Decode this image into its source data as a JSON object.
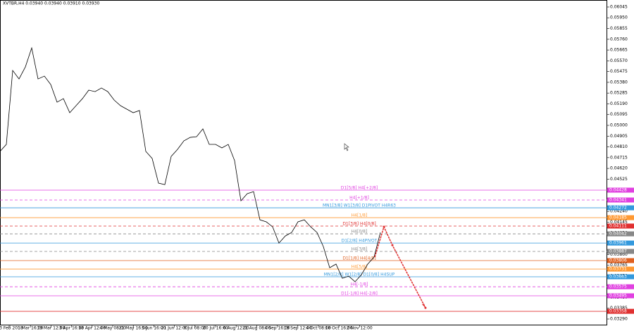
{
  "chart_data": {
    "type": "line",
    "title": "XVTBR,H4  0.03940 0.03940 0.03910 0.03930",
    "color": "#000000",
    "x_labels": [
      "13 Feb 2018",
      "1 Mar 16:00",
      "19 Mar 12:00",
      "3 Apr 16:00",
      "18 Apr 12:00",
      "4 May 08:00",
      "21 May 16:00",
      "5 Jun 16:00",
      "21 Jun 12:00",
      "6 Jul 08:00",
      "20 Jul 16:00",
      "6 Aug 12:00",
      "21 Aug 08:00",
      "4 Sep 16:00",
      "19 Sep 12:00",
      "4 Oct 08:00",
      "18 Oct 16:00",
      "2 Nov 12:00"
    ],
    "values": [
      0.0477,
      0.04832,
      0.05485,
      0.0541,
      0.05516,
      0.05684,
      0.0541,
      0.05435,
      0.05361,
      0.05205,
      0.05236,
      0.05112,
      0.05174,
      0.05236,
      0.05311,
      0.05298,
      0.0533,
      0.05298,
      0.05224,
      0.05174,
      0.05143,
      0.05112,
      0.05131,
      0.0477,
      0.04708,
      0.0449,
      0.04477,
      0.04726,
      0.04788,
      0.04863,
      0.04894,
      0.049,
      0.04969,
      0.04832,
      0.04832,
      0.04801,
      0.04832,
      0.04689,
      0.04334,
      0.04397,
      0.04415,
      0.04166,
      0.04148,
      0.04104,
      0.03961,
      0.04023,
      0.04054,
      0.04148,
      0.04166,
      0.04104,
      0.04054,
      0.0393,
      0.03743,
      0.03775,
      0.0365,
      0.03669,
      0.03619,
      0.03681,
      0.03775,
      0.03837,
      0.04054
    ],
    "ylim": [
      0.03234,
      0.06107
    ],
    "yticks": [
      {
        "value": 0.06045,
        "label": "0.06045"
      },
      {
        "value": 0.0595,
        "label": "0.05950"
      },
      {
        "value": 0.05855,
        "label": "0.05855"
      },
      {
        "value": 0.0576,
        "label": "0.05760"
      },
      {
        "value": 0.05665,
        "label": "0.05665"
      },
      {
        "value": 0.0557,
        "label": "0.05570"
      },
      {
        "value": 0.05475,
        "label": "0.05475"
      },
      {
        "value": 0.0538,
        "label": "0.05380"
      },
      {
        "value": 0.05285,
        "label": "0.05285"
      },
      {
        "value": 0.0519,
        "label": "0.05190"
      },
      {
        "value": 0.05095,
        "label": "0.05095"
      },
      {
        "value": 0.05,
        "label": "0.05000"
      },
      {
        "value": 0.04905,
        "label": "0.04905"
      },
      {
        "value": 0.0481,
        "label": "0.04810"
      },
      {
        "value": 0.04715,
        "label": "0.04715"
      },
      {
        "value": 0.0462,
        "label": "0.04620"
      },
      {
        "value": 0.04525,
        "label": "0.04525"
      },
      {
        "value": 0.0443,
        "label": "0.04430"
      },
      {
        "value": 0.04335,
        "label": "0.04335"
      },
      {
        "value": 0.0424,
        "label": "0.04240"
      },
      {
        "value": 0.04145,
        "label": "0.04145"
      },
      {
        "value": 0.0405,
        "label": "0.04050"
      },
      {
        "value": 0.03955,
        "label": "0.03955"
      },
      {
        "value": 0.0386,
        "label": "0.03860"
      },
      {
        "value": 0.03765,
        "label": "0.03765"
      },
      {
        "value": 0.0367,
        "label": "0.03670"
      },
      {
        "value": 0.03575,
        "label": "0.03575"
      },
      {
        "value": 0.0348,
        "label": "0.03480"
      },
      {
        "value": 0.03385,
        "label": "0.03385"
      },
      {
        "value": 0.0329,
        "label": "0.03290"
      }
    ],
    "levels": [
      {
        "label": "D1[5/8] H4[+2/8]",
        "value": 0.04428,
        "color": "#e040e0",
        "dash": false
      },
      {
        "label": "H4[+1/8]",
        "value": 0.04341,
        "color": "#e040e0",
        "dash": true
      },
      {
        "label": "MN1[3/8] W1[3/8] D1PIVOT H4R63",
        "value": 0.04272,
        "color": "#3399dd",
        "dash": false
      },
      {
        "label": "H4[1/8]",
        "value": 0.04185,
        "color": "#ff9933",
        "dash": false
      },
      {
        "label": "D1[3/8] H4[0/8]",
        "value": 0.04111,
        "color": "#e03030",
        "dash": true
      },
      {
        "label": "H4[0/8]",
        "value": 0.04042,
        "color": "#888888",
        "dash": true
      },
      {
        "label": "D1[2/8] H4PIVOT",
        "value": 0.03961,
        "color": "#3399dd",
        "dash": false
      },
      {
        "label": "H4[3/8]",
        "value": 0.03887,
        "color": "#888888",
        "dash": true
      },
      {
        "label": "D1[1/8] H4[4/8]",
        "value": 0.03806,
        "color": "#e06020",
        "dash": false
      },
      {
        "label": "H4[5/8]",
        "value": 0.03731,
        "color": "#ff9933",
        "dash": false
      },
      {
        "label": "MN1[2/8] W1[2/8] D1[0/8] H4SUP",
        "value": 0.03663,
        "color": "#3399dd",
        "dash": false
      },
      {
        "label": "H4[-1/8]",
        "value": 0.03575,
        "color": "#e040e0",
        "dash": true
      },
      {
        "label": "D1[-1/8] H4[-2/8]",
        "value": 0.03495,
        "color": "#e040e0",
        "dash": false
      },
      {
        "value": 0.03358,
        "color": "#e03030",
        "dash": false
      }
    ],
    "forecast": {
      "color": "#e03030",
      "values": [
        0.03837,
        0.04104,
        0.03942,
        0.03389
      ]
    }
  }
}
